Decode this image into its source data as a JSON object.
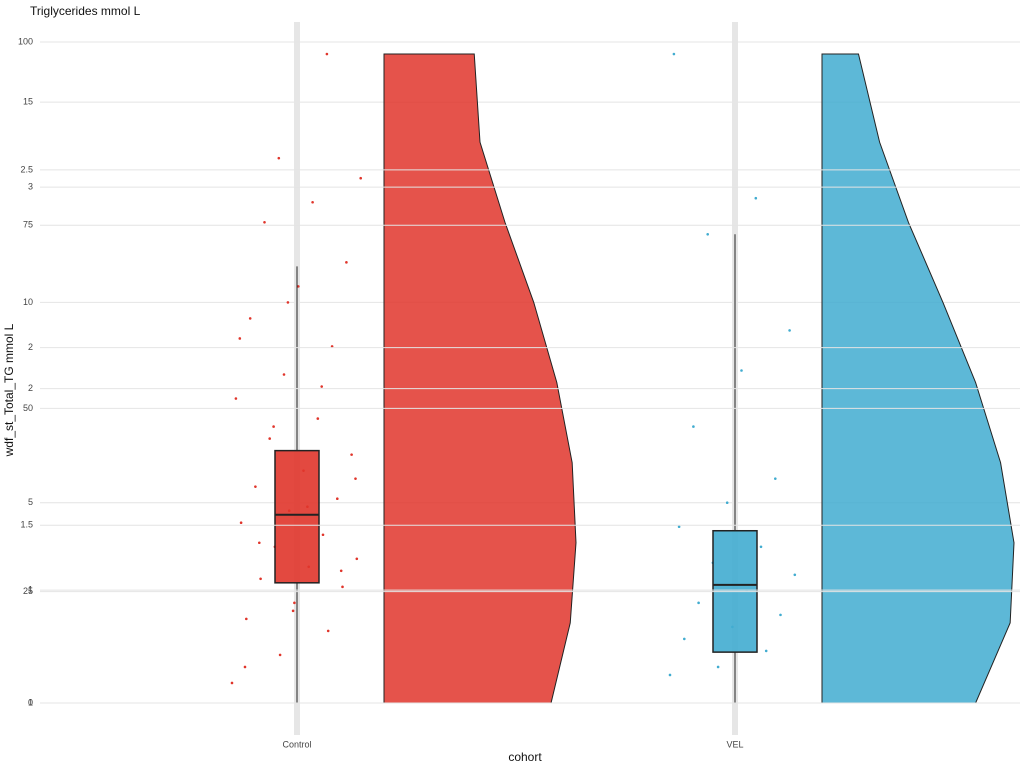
{
  "chart_data": [
    {
      "type": "raincloud",
      "title": "Triglycerides mmol L",
      "x_label": "cohort",
      "y_label": "wdf_st_Total_TG mmol L",
      "categories": [
        "Control",
        "VEL"
      ],
      "ylim": [
        0,
        16.5
      ],
      "yticks": [
        0,
        5,
        10,
        15
      ],
      "grid": true,
      "density_at": [
        0,
        2,
        4,
        6,
        8,
        10,
        12,
        14,
        16.2
      ],
      "series": [
        {
          "color": "#e0352b",
          "box": {
            "min": 0,
            "q1": 3.0,
            "median": 4.7,
            "q3": 6.3,
            "max": 10.9
          },
          "density": [
            0.87,
            0.97,
            1.0,
            0.98,
            0.9,
            0.78,
            0.63,
            0.5,
            0.47
          ],
          "points": [
            0.5,
            1.2,
            1.8,
            2.1,
            2.5,
            2.9,
            3.1,
            3.4,
            3.6,
            3.9,
            4.2,
            4.5,
            4.8,
            5.1,
            5.4,
            5.8,
            6.2,
            6.6,
            7.1,
            7.6,
            8.2,
            8.9,
            9.6,
            10.4,
            11.0,
            12.0,
            12.5,
            13.1,
            13.6,
            16.2,
            0.9,
            2.3,
            3.3,
            4.0,
            4.9,
            5.6,
            6.9,
            7.9,
            9.1,
            10.0
          ]
        },
        {
          "color": "#41acd0",
          "box": {
            "min": 0,
            "q1": 1.27,
            "median": 2.95,
            "q3": 4.3,
            "max": 11.7
          },
          "density": [
            0.8,
            0.98,
            1.0,
            0.93,
            0.8,
            0.63,
            0.45,
            0.3,
            0.19
          ],
          "points": [
            0.7,
            0.9,
            1.3,
            1.6,
            1.9,
            2.2,
            2.5,
            2.8,
            3.2,
            3.5,
            3.9,
            4.4,
            5.0,
            5.6,
            6.9,
            8.3,
            9.3,
            11.7,
            12.6,
            16.2
          ]
        }
      ]
    },
    {
      "type": "axis",
      "ylim": [
        1.0,
        2.86
      ],
      "yticks": [
        1.0,
        1.5,
        2.0,
        2.5
      ]
    },
    {
      "type": "axis",
      "ylim": [
        0.44,
        3.72
      ],
      "yticks": [
        1,
        2,
        3
      ]
    },
    {
      "type": "axis",
      "ylim": [
        9.8,
        100
      ],
      "yticks": [
        25,
        50,
        75,
        100
      ]
    }
  ]
}
